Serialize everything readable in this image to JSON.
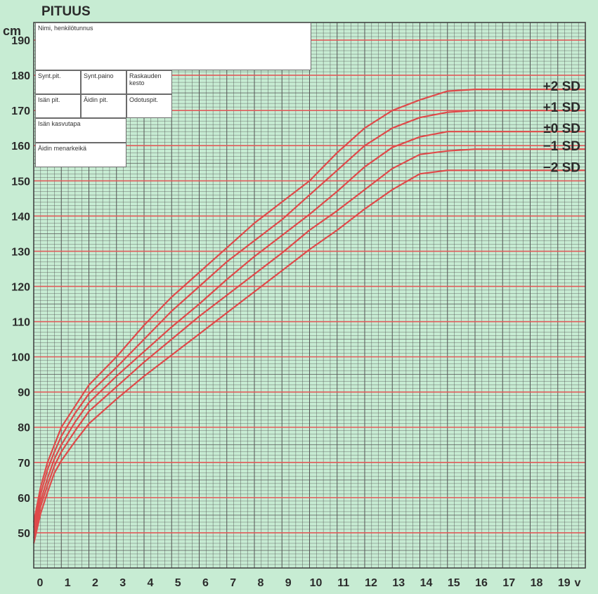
{
  "title": "PITUUS",
  "y_unit": "cm",
  "x_unit": "v",
  "form": {
    "name_label": "Nimi, henkilötunnus",
    "birth_length_label": "Synt.pit.",
    "birth_weight_label": "Synt.paino",
    "pregnancy_duration_label": "Raskauden kesto",
    "father_height_label": "Isän pit.",
    "mother_height_label": "Äidin pit.",
    "expected_height_label": "Odotuspit.",
    "father_growth_label": "Isän kasvutapa",
    "mother_menarche_label": "Äidin menarkeikä"
  },
  "colors": {
    "background": "#c7ecd3",
    "grid": "#555555",
    "major": "#e05a5a",
    "curve": "#df4a4a"
  },
  "chart_data": {
    "type": "line",
    "title": "PITUUS",
    "xlabel": "v",
    "ylabel": "cm",
    "xlim": [
      0,
      20
    ],
    "ylim": [
      40,
      195
    ],
    "x_ticks": [
      "0",
      "1",
      "2",
      "3",
      "4",
      "5",
      "6",
      "7",
      "8",
      "9",
      "10",
      "11",
      "12",
      "13",
      "14",
      "15",
      "16",
      "17",
      "18",
      "19"
    ],
    "y_ticks": [
      "50",
      "60",
      "70",
      "80",
      "90",
      "100",
      "110",
      "120",
      "130",
      "140",
      "150",
      "160",
      "170",
      "180",
      "190"
    ],
    "grid": true,
    "series": [
      {
        "name": "+2 SD",
        "x": [
          0,
          0.25,
          0.5,
          0.75,
          1,
          1.5,
          2,
          3,
          4,
          5,
          6,
          7,
          8,
          9,
          10,
          11,
          12,
          13,
          14,
          15,
          16,
          17,
          18,
          19,
          20
        ],
        "y": [
          53,
          63,
          70,
          75,
          80,
          86,
          92,
          100,
          109,
          117,
          124,
          131,
          138,
          144,
          150,
          158,
          165,
          170,
          173,
          175.5,
          176,
          176,
          176,
          176,
          176
        ]
      },
      {
        "name": "+1 SD",
        "x": [
          0,
          0.25,
          0.5,
          0.75,
          1,
          1.5,
          2,
          3,
          4,
          5,
          6,
          7,
          8,
          9,
          10,
          11,
          12,
          13,
          14,
          15,
          16,
          17,
          18,
          19,
          20
        ],
        "y": [
          51.5,
          61,
          68,
          73,
          77.5,
          84,
          89.5,
          97,
          105,
          113,
          120,
          127,
          133,
          139,
          146,
          153,
          160,
          165,
          168,
          169.5,
          170,
          170,
          170,
          170,
          170
        ]
      },
      {
        "name": "±0 SD",
        "x": [
          0,
          0.25,
          0.5,
          0.75,
          1,
          1.5,
          2,
          3,
          4,
          5,
          6,
          7,
          8,
          9,
          10,
          11,
          12,
          13,
          14,
          15,
          16,
          17,
          18,
          19,
          20
        ],
        "y": [
          50,
          59,
          65.5,
          71,
          75,
          81.5,
          87,
          94.5,
          101.5,
          108.5,
          115,
          122,
          128.5,
          134.5,
          140.5,
          147,
          154,
          159.5,
          162.5,
          164,
          164,
          164,
          164,
          164,
          164
        ]
      },
      {
        "name": "−1 SD",
        "x": [
          0,
          0.25,
          0.5,
          0.75,
          1,
          1.5,
          2,
          3,
          4,
          5,
          6,
          7,
          8,
          9,
          10,
          11,
          12,
          13,
          14,
          15,
          16,
          17,
          18,
          19,
          20
        ],
        "y": [
          48.5,
          57.5,
          63.5,
          69,
          73,
          79,
          84.5,
          91.5,
          98.5,
          105,
          111.5,
          117.5,
          123.5,
          129.5,
          136,
          141.5,
          147.5,
          153.5,
          157.5,
          158.5,
          159,
          159,
          159,
          159,
          159
        ]
      },
      {
        "name": "−2 SD",
        "x": [
          0,
          0.25,
          0.5,
          0.75,
          1,
          1.5,
          2,
          3,
          4,
          5,
          6,
          7,
          8,
          9,
          10,
          11,
          12,
          13,
          14,
          15,
          16,
          17,
          18,
          19,
          20
        ],
        "y": [
          47,
          55.5,
          61.5,
          67,
          70.5,
          76,
          81,
          88,
          94.5,
          100.5,
          106.5,
          112.5,
          118.5,
          124.5,
          130.5,
          136,
          142,
          147.5,
          152,
          153,
          153,
          153,
          153,
          153,
          153
        ]
      }
    ]
  }
}
